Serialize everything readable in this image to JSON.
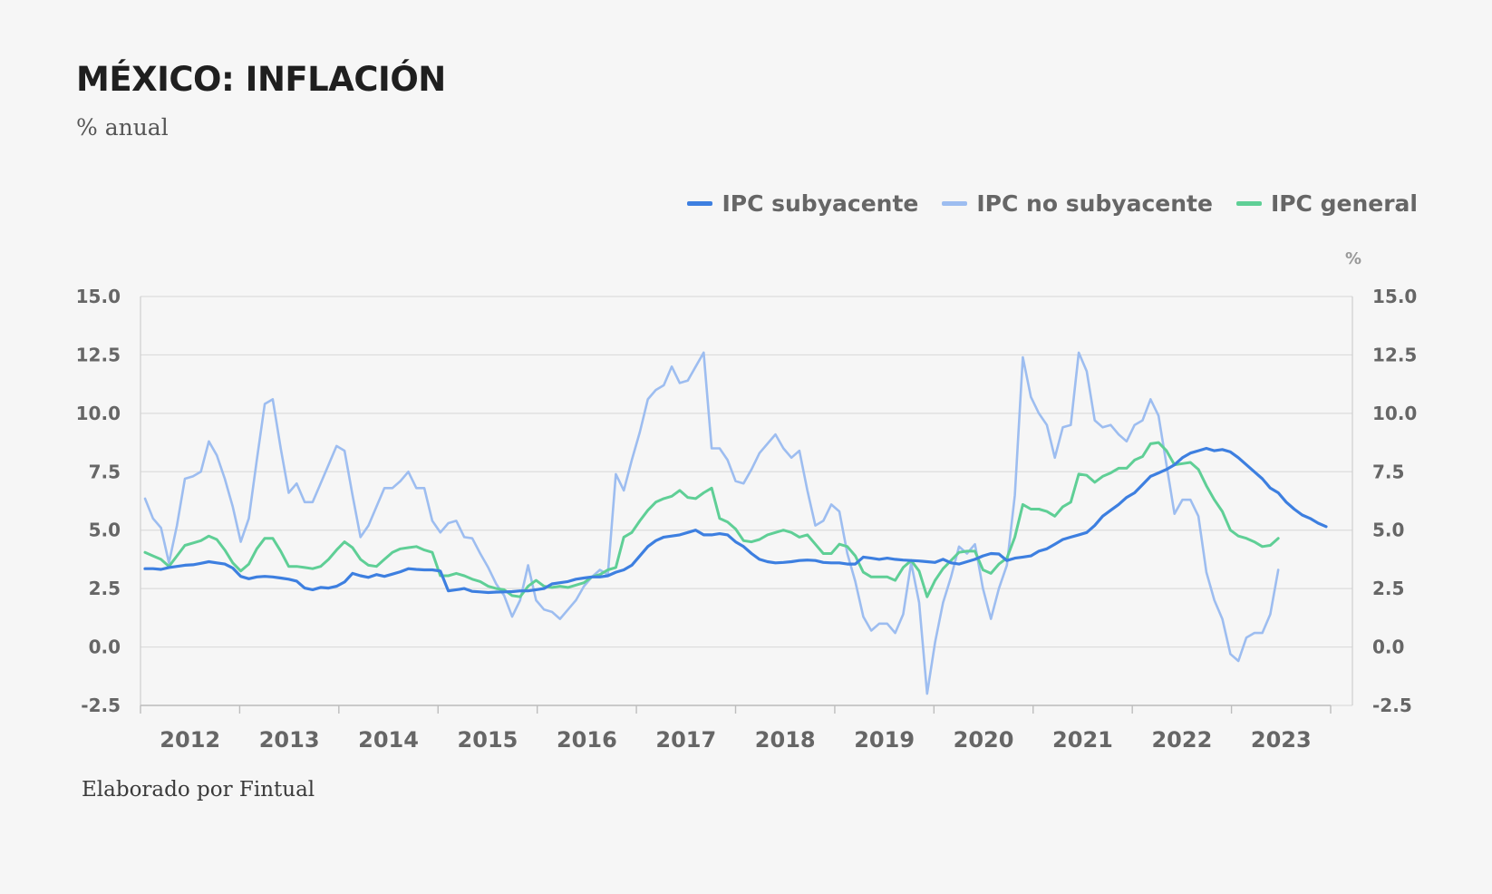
{
  "title": "MÉXICO: INFLACIÓN",
  "subtitle": "% anual",
  "source": "Elaborado por Fintual",
  "chart_data": {
    "type": "line",
    "unit_label": "%",
    "ylim": [
      -2.5,
      15.0
    ],
    "yticks": [
      "15.0",
      "12.5",
      "10.0",
      "7.5",
      "5.0",
      "2.5",
      "0.0",
      "-2.5"
    ],
    "ytick_values": [
      15.0,
      12.5,
      10.0,
      7.5,
      5.0,
      2.5,
      0.0,
      -2.5
    ],
    "years": [
      "2012",
      "2013",
      "2014",
      "2015",
      "2016",
      "2017",
      "2018",
      "2019",
      "2020",
      "2021",
      "2022",
      "2023"
    ],
    "x_start": "2012-01",
    "x_end": "2023-12",
    "grid": true,
    "legend_position": "top-right",
    "series": [
      {
        "name": "IPC subyacente",
        "color": "#3d7fe0",
        "values": [
          3.35,
          3.35,
          3.32,
          3.4,
          3.45,
          3.5,
          3.52,
          3.58,
          3.65,
          3.6,
          3.55,
          3.38,
          3.02,
          2.92,
          3.0,
          3.02,
          3.0,
          2.95,
          2.9,
          2.82,
          2.52,
          2.45,
          2.55,
          2.52,
          2.6,
          2.78,
          3.15,
          3.05,
          2.98,
          3.1,
          3.02,
          3.12,
          3.22,
          3.35,
          3.32,
          3.3,
          3.3,
          3.25,
          2.4,
          2.45,
          2.5,
          2.38,
          2.36,
          2.33,
          2.35,
          2.36,
          2.37,
          2.4,
          2.4,
          2.45,
          2.5,
          2.7,
          2.75,
          2.8,
          2.9,
          2.95,
          3.0,
          3.0,
          3.05,
          3.2,
          3.3,
          3.5,
          3.9,
          4.3,
          4.55,
          4.7,
          4.75,
          4.8,
          4.9,
          5.0,
          4.8,
          4.8,
          4.85,
          4.8,
          4.5,
          4.3,
          4.0,
          3.75,
          3.65,
          3.6,
          3.62,
          3.65,
          3.7,
          3.72,
          3.7,
          3.62,
          3.6,
          3.6,
          3.55,
          3.55,
          3.85,
          3.8,
          3.75,
          3.8,
          3.75,
          3.72,
          3.7,
          3.68,
          3.65,
          3.62,
          3.75,
          3.6,
          3.55,
          3.65,
          3.75,
          3.9,
          4.0,
          3.98,
          3.7,
          3.8,
          3.85,
          3.9,
          4.1,
          4.2,
          4.4,
          4.6,
          4.7,
          4.8,
          4.9,
          5.2,
          5.6,
          5.85,
          6.1,
          6.4,
          6.6,
          6.95,
          7.3,
          7.45,
          7.6,
          7.8,
          8.1,
          8.3,
          8.4,
          8.5,
          8.4,
          8.45,
          8.35,
          8.1,
          7.8,
          7.5,
          7.2,
          6.8,
          6.6,
          6.2,
          5.9,
          5.65,
          5.5,
          5.3,
          5.15
        ]
      },
      {
        "name": "IPC no subyacente",
        "color": "#9dbdf0",
        "values": [
          6.35,
          5.5,
          5.1,
          3.6,
          5.2,
          7.2,
          7.3,
          7.5,
          8.8,
          8.2,
          7.2,
          6.0,
          4.5,
          5.5,
          8.0,
          10.4,
          10.6,
          8.5,
          6.6,
          7.0,
          6.2,
          6.2,
          7.0,
          7.8,
          8.6,
          8.4,
          6.5,
          4.7,
          5.2,
          6.0,
          6.8,
          6.8,
          7.1,
          7.5,
          6.8,
          6.8,
          5.4,
          4.9,
          5.3,
          5.4,
          4.7,
          4.65,
          4.0,
          3.4,
          2.7,
          2.2,
          1.3,
          2.0,
          3.5,
          2.0,
          1.6,
          1.5,
          1.2,
          1.6,
          2.0,
          2.6,
          3.0,
          3.3,
          3.1,
          7.4,
          6.7,
          8.0,
          9.2,
          10.6,
          11.0,
          11.2,
          12.0,
          11.3,
          11.4,
          12.0,
          12.6,
          8.5,
          8.5,
          8.0,
          7.1,
          7.0,
          7.6,
          8.3,
          8.7,
          9.1,
          8.5,
          8.1,
          8.4,
          6.7,
          5.2,
          5.4,
          6.1,
          5.8,
          4.0,
          2.8,
          1.3,
          0.7,
          1.0,
          1.0,
          0.6,
          1.4,
          3.6,
          1.9,
          -2.0,
          0.2,
          1.9,
          3.0,
          4.3,
          4.0,
          4.4,
          2.5,
          1.2,
          2.5,
          3.5,
          6.5,
          12.4,
          10.7,
          10.0,
          9.5,
          8.1,
          9.4,
          9.5,
          12.6,
          11.8,
          9.7,
          9.4,
          9.5,
          9.1,
          8.8,
          9.5,
          9.7,
          10.6,
          9.9,
          7.8,
          5.7,
          6.3,
          6.3,
          5.6,
          3.2,
          2.0,
          1.2,
          -0.3,
          -0.6,
          0.4,
          0.6,
          0.6,
          1.4,
          3.3
        ]
      },
      {
        "name": "IPC general",
        "color": "#5fcf96",
        "values": [
          4.05,
          3.9,
          3.75,
          3.45,
          3.9,
          4.35,
          4.45,
          4.55,
          4.75,
          4.6,
          4.15,
          3.6,
          3.25,
          3.55,
          4.2,
          4.65,
          4.65,
          4.1,
          3.45,
          3.45,
          3.4,
          3.35,
          3.45,
          3.75,
          4.15,
          4.5,
          4.25,
          3.75,
          3.5,
          3.45,
          3.75,
          4.05,
          4.2,
          4.25,
          4.3,
          4.15,
          4.05,
          3.05,
          3.05,
          3.15,
          3.05,
          2.9,
          2.8,
          2.6,
          2.5,
          2.45,
          2.2,
          2.15,
          2.6,
          2.85,
          2.6,
          2.55,
          2.6,
          2.55,
          2.65,
          2.75,
          3.0,
          3.1,
          3.3,
          3.4,
          4.7,
          4.9,
          5.4,
          5.85,
          6.2,
          6.35,
          6.45,
          6.7,
          6.4,
          6.35,
          6.6,
          6.8,
          5.5,
          5.35,
          5.05,
          4.55,
          4.5,
          4.6,
          4.8,
          4.9,
          5.0,
          4.9,
          4.7,
          4.8,
          4.4,
          4.0,
          4.0,
          4.4,
          4.3,
          3.9,
          3.2,
          3.0,
          3.0,
          3.0,
          2.85,
          3.4,
          3.7,
          3.25,
          2.15,
          2.85,
          3.35,
          3.7,
          4.05,
          4.1,
          4.1,
          3.3,
          3.15,
          3.55,
          3.8,
          4.7,
          6.1,
          5.9,
          5.9,
          5.8,
          5.6,
          6.0,
          6.2,
          7.4,
          7.35,
          7.05,
          7.3,
          7.45,
          7.65,
          7.65,
          8.0,
          8.15,
          8.7,
          8.75,
          8.4,
          7.8,
          7.85,
          7.9,
          7.6,
          6.9,
          6.3,
          5.8,
          5.0,
          4.75,
          4.65,
          4.5,
          4.3,
          4.35,
          4.65
        ]
      }
    ]
  }
}
